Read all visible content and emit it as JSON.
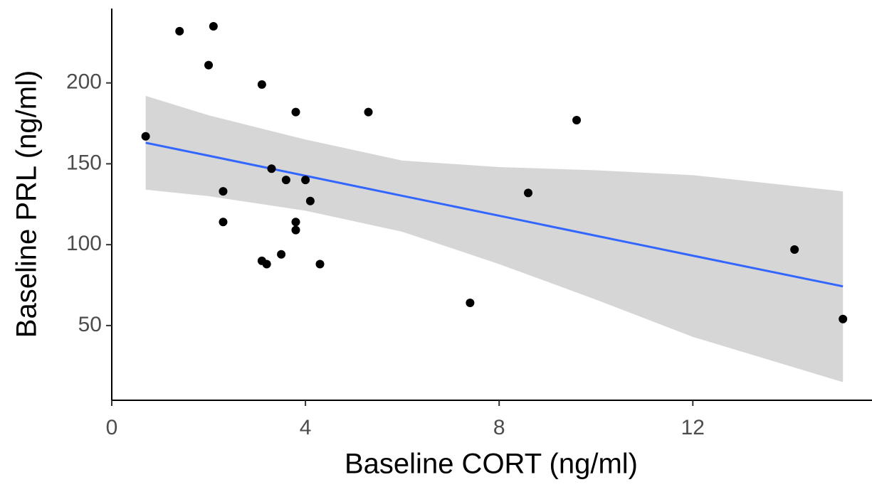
{
  "chart_data": {
    "type": "scatter",
    "x_label": "Baseline CORT (ng/ml)",
    "y_label": "Baseline PRL (ng/ml)",
    "xlim": [
      0,
      15.7
    ],
    "ylim": [
      3.8,
      246
    ],
    "xticks": [
      0,
      4,
      8,
      12
    ],
    "yticks": [
      50,
      100,
      150,
      200
    ],
    "series": [
      {
        "color": "#000000",
        "x": [
          0.7,
          1.4,
          2.1,
          2.0,
          2.3,
          2.3,
          3.1,
          3.3,
          3.1,
          3.2,
          3.5,
          3.6,
          3.8,
          3.8,
          3.8,
          4.0,
          4.1,
          4.3,
          5.3,
          7.4,
          8.6,
          9.6,
          14.1,
          15.1
        ],
        "values": [
          167,
          232,
          235,
          211,
          133,
          114,
          199,
          147,
          90,
          88,
          94,
          140,
          182,
          114,
          109,
          140,
          127,
          88,
          182,
          64,
          132,
          177,
          97,
          54
        ]
      }
    ],
    "fit": {
      "color": "#3366ff",
      "band_color": "#d4d4d4",
      "x": [
        0.7,
        2,
        4,
        6,
        8,
        10,
        12,
        15.1
      ],
      "y": [
        163,
        155,
        142.6,
        130.2,
        117.9,
        105.5,
        93.2,
        74.2
      ],
      "lower": [
        134,
        130,
        121,
        108,
        88,
        66,
        43,
        15
      ],
      "upper": [
        192,
        180,
        165,
        152,
        148,
        146,
        143,
        133
      ]
    }
  }
}
